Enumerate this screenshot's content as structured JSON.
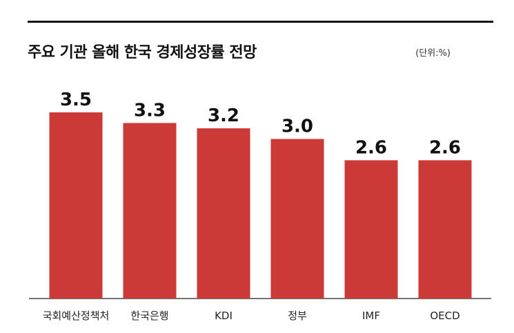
{
  "title": "주요 기관 올해 한국 경제성장률 전망",
  "unit": "(단위:%)",
  "chart_data": {
    "type": "bar",
    "categories": [
      "국회예산정책처",
      "한국은행",
      "KDI",
      "정부",
      "IMF",
      "OECD"
    ],
    "values": [
      3.5,
      3.3,
      3.2,
      3.0,
      2.6,
      2.6
    ],
    "value_labels": [
      "3.5",
      "3.3",
      "3.2",
      "3.0",
      "2.6",
      "2.6"
    ],
    "title": "주요 기관 올해 한국 경제성장률 전망",
    "xlabel": "",
    "ylabel": "",
    "ylim": [
      0,
      3.5
    ],
    "grid": false,
    "legend": "none",
    "bar_color": "#cc3a37",
    "text_color": "#111111"
  }
}
